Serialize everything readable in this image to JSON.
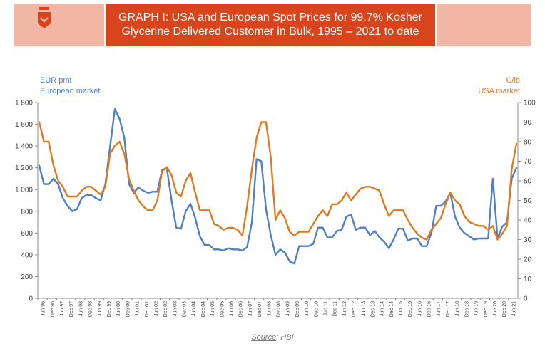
{
  "header": {
    "title_line1": "GRAPH I: USA and European Spot Prices for 99.7% Kosher",
    "title_line2": "Glycerine Delivered Customer in Bulk, 1995 – 2021 to date"
  },
  "source": {
    "label": "Source",
    "text": ": HBI"
  },
  "colors": {
    "banner": "#d8441c",
    "banner_light": "#f2b6a5",
    "europe": "#4f7fc4",
    "usa": "#e07a1f"
  },
  "chart_data": {
    "type": "line",
    "left_axis": {
      "label_line1": "EUR pmt",
      "label_line2": "European market",
      "range": [
        0,
        1800
      ],
      "ticks": [
        "0",
        "200",
        "400",
        "600",
        "800",
        "1 000",
        "1 200",
        "1 400",
        "1 600",
        "1 800"
      ]
    },
    "right_axis": {
      "label_line1": "C/lb",
      "label_line2": "USA market",
      "range": [
        0,
        100
      ],
      "ticks": [
        "0",
        "10",
        "20",
        "30",
        "40",
        "50",
        "60",
        "70",
        "80",
        "90",
        "100"
      ]
    },
    "x_tick_labels": [
      "Jun 96",
      "Dec 96",
      "Jun 97",
      "Dec 97",
      "Jun 98",
      "Dec 98",
      "Jun 99",
      "Dec 99",
      "Jun 00",
      "Dec 00",
      "Jun 01",
      "Dec 01",
      "Jun 02",
      "Dec 02",
      "Jun 03",
      "Dec 03",
      "Jun 04",
      "Dec 04",
      "Jun 05",
      "Dec 05",
      "Jun 06",
      "Dec 06",
      "Jun 07",
      "Dec 07",
      "Jun 08",
      "Dec 08",
      "Jun 09",
      "Dec 09",
      "Jun 10",
      "Dec 10",
      "Jun 11",
      "Dec 11",
      "Jun 12",
      "Dec 12",
      "Jun 13",
      "Dec 13",
      "Jun 14",
      "Dec 14",
      "Jun 15",
      "Dec 15",
      "Jun 16",
      "Dec 16",
      "Jun 17",
      "Dec 17",
      "Jun 18",
      "Dec 18",
      "Jun 19",
      "Dec 19",
      "Jun 20",
      "Dec 20",
      "Jun 21"
    ],
    "series": [
      {
        "name": "European market",
        "axis": "left",
        "values": [
          1220,
          1050,
          1050,
          1100,
          1050,
          920,
          850,
          800,
          820,
          920,
          950,
          950,
          920,
          900,
          1050,
          1400,
          1740,
          1650,
          1480,
          1050,
          970,
          1020,
          990,
          970,
          980,
          980,
          1180,
          1200,
          900,
          650,
          640,
          800,
          870,
          740,
          570,
          490,
          490,
          450,
          450,
          440,
          460,
          450,
          450,
          440,
          470,
          700,
          1280,
          1260,
          820,
          580,
          400,
          450,
          420,
          340,
          320,
          480,
          480,
          480,
          500,
          650,
          650,
          560,
          560,
          620,
          630,
          750,
          770,
          630,
          650,
          650,
          580,
          620,
          560,
          520,
          460,
          540,
          640,
          640,
          530,
          550,
          550,
          480,
          480,
          600,
          850,
          850,
          890,
          970,
          750,
          650,
          600,
          570,
          540,
          550,
          550,
          550,
          1100,
          550,
          660,
          700,
          1100,
          1200
        ]
      },
      {
        "name": "USA market",
        "axis": "right",
        "values": [
          90,
          80,
          80,
          68,
          60,
          57,
          52,
          52,
          52,
          55,
          57,
          57,
          55,
          53,
          57,
          74,
          78,
          80,
          74,
          61,
          55,
          50,
          47,
          45,
          45,
          50,
          65,
          67,
          63,
          54,
          52,
          60,
          64,
          54,
          45,
          45,
          45,
          38,
          37,
          35,
          36,
          36,
          35,
          32,
          47,
          66,
          82,
          90,
          90,
          72,
          40,
          45,
          41,
          34,
          32,
          34,
          34,
          34,
          38,
          42,
          45,
          42,
          48,
          48,
          50,
          54,
          50,
          53,
          56,
          57,
          57,
          56,
          55,
          48,
          42,
          45,
          45,
          45,
          40,
          36,
          33,
          31,
          30,
          35,
          38,
          41,
          48,
          54,
          50,
          48,
          42,
          39,
          38,
          37,
          37,
          35,
          37,
          30,
          33,
          37,
          66,
          79
        ]
      }
    ]
  }
}
